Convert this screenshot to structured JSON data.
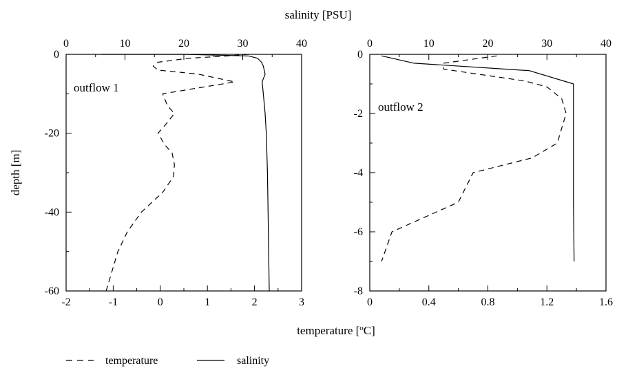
{
  "chart_data": [
    {
      "type": "line",
      "annotation": "outflow 1",
      "y_axis": {
        "title": "depth  [m]",
        "range": [
          -60,
          0
        ],
        "ticks": [
          "0",
          "-20",
          "-40",
          "-60"
        ]
      },
      "x_bottom": {
        "quantity": "temperature",
        "range": [
          -2,
          3
        ],
        "ticks": [
          "-2",
          "-1",
          "0",
          "1",
          "2",
          "3"
        ]
      },
      "x_top": {
        "quantity": "salinity",
        "range": [
          0,
          40
        ],
        "ticks": [
          "0",
          "10",
          "20",
          "30",
          "40"
        ]
      },
      "series": [
        {
          "name": "temperature",
          "style": "dashed",
          "axis": "bottom",
          "points": [
            [
              1.88,
              0
            ],
            [
              1.3,
              -0.5
            ],
            [
              0.6,
              -1
            ],
            [
              -0.05,
              -2
            ],
            [
              -0.15,
              -3
            ],
            [
              -0.05,
              -4
            ],
            [
              0.8,
              -5
            ],
            [
              1.58,
              -7
            ],
            [
              0.05,
              -10
            ],
            [
              0.15,
              -13
            ],
            [
              0.3,
              -15
            ],
            [
              0.1,
              -18
            ],
            [
              -0.05,
              -20
            ],
            [
              0.1,
              -23
            ],
            [
              0.25,
              -25
            ],
            [
              0.3,
              -28
            ],
            [
              0.28,
              -31
            ],
            [
              0.05,
              -35
            ],
            [
              -0.4,
              -40
            ],
            [
              -0.7,
              -45
            ],
            [
              -0.9,
              -50
            ],
            [
              -1.15,
              -60
            ]
          ]
        },
        {
          "name": "salinity",
          "style": "solid",
          "axis": "top",
          "points": [
            [
              6,
              0
            ],
            [
              20,
              0.0
            ],
            [
              31,
              -0.4
            ],
            [
              32.5,
              -1
            ],
            [
              33.2,
              -2
            ],
            [
              33.5,
              -3
            ],
            [
              33.8,
              -5
            ],
            [
              33.3,
              -7
            ],
            [
              33.5,
              -10
            ],
            [
              33.8,
              -15
            ],
            [
              34.0,
              -20
            ],
            [
              34.2,
              -30
            ],
            [
              34.3,
              -40
            ],
            [
              34.4,
              -50
            ],
            [
              34.5,
              -60
            ]
          ]
        }
      ]
    },
    {
      "type": "line",
      "annotation": "outflow 2",
      "y_axis": {
        "range": [
          -8,
          0
        ],
        "ticks": [
          "0",
          "-2",
          "-4",
          "-6",
          "-8"
        ]
      },
      "x_bottom": {
        "quantity": "temperature",
        "range": [
          0,
          1.6
        ],
        "ticks": [
          "0",
          "0.4",
          "0.8",
          "1.2",
          "1.6"
        ]
      },
      "x_top": {
        "quantity": "salinity",
        "range": [
          0,
          40
        ],
        "ticks": [
          "0",
          "10",
          "20",
          "30",
          "40"
        ]
      },
      "series": [
        {
          "name": "temperature",
          "style": "dashed",
          "axis": "bottom",
          "points": [
            [
              0.86,
              -0.05
            ],
            [
              0.5,
              -0.3
            ],
            [
              0.5,
              -0.5
            ],
            [
              1.05,
              -0.9
            ],
            [
              1.2,
              -1.1
            ],
            [
              1.3,
              -1.5
            ],
            [
              1.33,
              -2
            ],
            [
              1.3,
              -2.5
            ],
            [
              1.27,
              -3
            ],
            [
              1.1,
              -3.5
            ],
            [
              0.7,
              -4
            ],
            [
              0.6,
              -5
            ],
            [
              0.15,
              -6
            ],
            [
              0.08,
              -7
            ]
          ]
        },
        {
          "name": "salinity",
          "style": "solid",
          "axis": "top",
          "points": [
            [
              2,
              -0.05
            ],
            [
              7.5,
              -0.3
            ],
            [
              27,
              -0.55
            ],
            [
              34.5,
              -1
            ],
            [
              34.5,
              -3
            ],
            [
              34.5,
              -5
            ],
            [
              34.6,
              -7
            ]
          ]
        }
      ]
    }
  ],
  "labels": {
    "top_axis_title": "salinity [PSU]",
    "bottom_axis_title": "temperature [",
    "bottom_axis_title_sup": "o",
    "bottom_axis_title_end": "C]",
    "legend_temperature": "temperature",
    "legend_salinity": "salinity"
  }
}
